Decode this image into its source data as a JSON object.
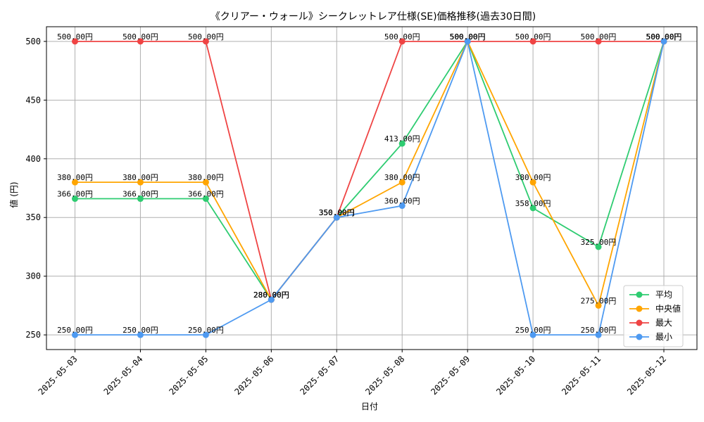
{
  "chart_data": {
    "type": "line",
    "title": "《クリアー・ウォール》シークレットレア仕様(SE)価格推移(過去30日間)",
    "xlabel": "日付",
    "ylabel": "値 (円)",
    "ylim": [
      237.5,
      512.5
    ],
    "yticks": [
      250,
      300,
      350,
      400,
      450,
      500
    ],
    "grid": true,
    "legend_position": "bottom-right",
    "label_suffix": "円",
    "categories": [
      "2025-05-03",
      "2025-05-04",
      "2025-05-05",
      "2025-05-06",
      "2025-05-07",
      "2025-05-08",
      "2025-05-09",
      "2025-05-10",
      "2025-05-11",
      "2025-05-12"
    ],
    "series": [
      {
        "name": "平均",
        "color": "#2ecc71",
        "values": [
          366,
          366,
          366,
          280,
          350,
          413,
          500,
          358,
          325,
          500
        ]
      },
      {
        "name": "中央値",
        "color": "#ffa500",
        "values": [
          380,
          380,
          380,
          280,
          350,
          380,
          500,
          380,
          275,
          500
        ]
      },
      {
        "name": "最大",
        "color": "#ef4444",
        "values": [
          500,
          500,
          500,
          280,
          350,
          500,
          500,
          500,
          500,
          500
        ]
      },
      {
        "name": "最小",
        "color": "#4e9af1",
        "values": [
          250,
          250,
          250,
          280,
          350,
          360,
          500,
          250,
          250,
          500
        ]
      }
    ]
  }
}
